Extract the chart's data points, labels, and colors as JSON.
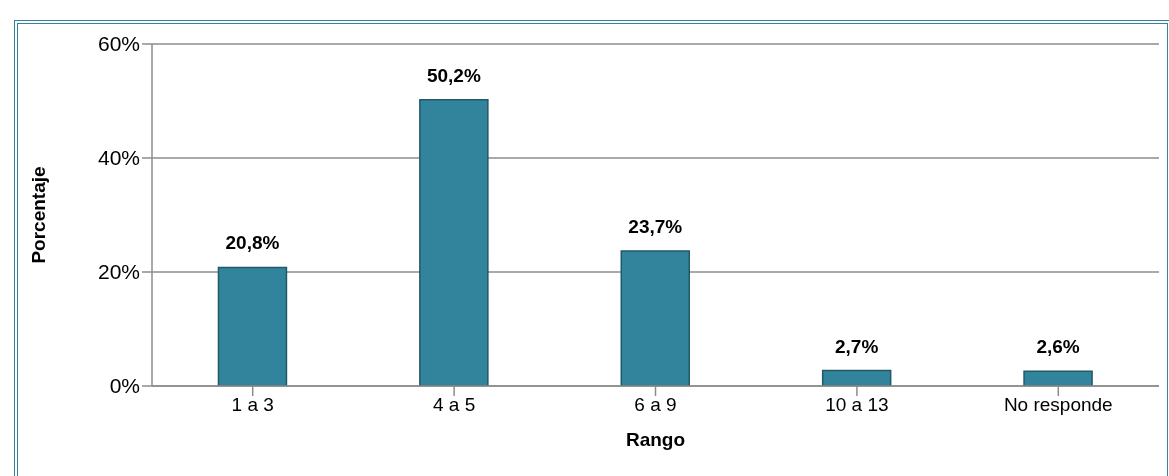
{
  "chart_data": {
    "type": "bar",
    "xlabel": "Rango",
    "ylabel": "Porcentaje",
    "categories": [
      "1 a 3",
      "4 a 5",
      "6 a 9",
      "10 a 13",
      "No responde"
    ],
    "values": [
      20.8,
      50.2,
      23.7,
      2.7,
      2.6
    ],
    "value_labels": [
      "20,8%",
      "50,2%",
      "23,7%",
      "2,7%",
      "2,6%"
    ],
    "color": "#31849b",
    "ylim": [
      0,
      60
    ],
    "yticks": [
      {
        "value": 0,
        "label": "0%"
      },
      {
        "value": 20,
        "label": "20%"
      },
      {
        "value": 40,
        "label": "40%"
      },
      {
        "value": 60,
        "label": "60%"
      }
    ],
    "grid": "y"
  }
}
